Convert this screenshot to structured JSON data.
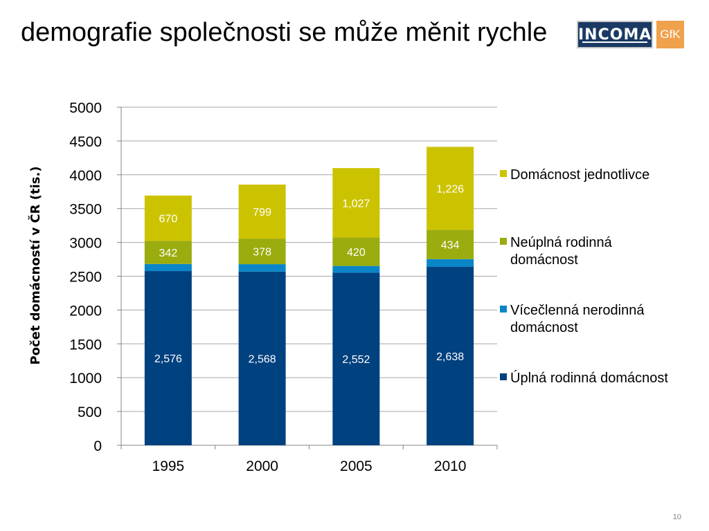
{
  "slide": {
    "title": "demografie společnosti se může měnit rychle",
    "logo_incoma": "INCOMA",
    "logo_gfk": "GfK",
    "page_number": "10"
  },
  "colors": {
    "uplna": "#00417f",
    "vicclenna": "#0a86c8",
    "neuplna": "#9aac0e",
    "jednotlivce": "#ccc300",
    "grid": "#a6a6a6",
    "axis": "#868686",
    "logo_navy": "#1a3a63",
    "logo_orange": "#f0a14b"
  },
  "chart_data": {
    "type": "bar",
    "stacked": true,
    "categories": [
      "1995",
      "2000",
      "2005",
      "2010"
    ],
    "ylabel": "Počet domácností v ČR (tis.)",
    "xlabel": "",
    "ylim": [
      0,
      5000
    ],
    "yticks": [
      "0",
      "500",
      "1000",
      "1500",
      "2000",
      "2500",
      "3000",
      "3500",
      "4000",
      "4500",
      "5000"
    ],
    "grid": true,
    "legend_position": "right",
    "series": [
      {
        "name": "Úplná rodinná domácnost",
        "color_key": "uplna",
        "values": [
          2576,
          2568,
          2552,
          2638
        ],
        "labels": [
          "2,576",
          "2,568",
          "2,552",
          "2,638"
        ]
      },
      {
        "name": "Vícečlenná nerodinná domácnost",
        "color_key": "vicclenna",
        "values": [
          105,
          110,
          100,
          115
        ],
        "labels": null
      },
      {
        "name": "Neúplná rodinná domácnost",
        "color_key": "neuplna",
        "values": [
          342,
          378,
          420,
          434
        ],
        "labels": [
          "342",
          "378",
          "420",
          "434"
        ]
      },
      {
        "name": "Domácnost jednotlivce",
        "color_key": "jednotlivce",
        "values": [
          670,
          799,
          1027,
          1226
        ],
        "labels": [
          "670",
          "799",
          "1,027",
          "1,226"
        ]
      }
    ],
    "legend_order": [
      3,
      2,
      1,
      0
    ]
  }
}
